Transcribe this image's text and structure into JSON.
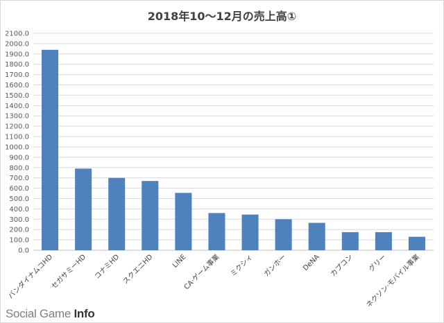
{
  "chart_data": {
    "type": "bar",
    "title": "2018年10〜12月の売上高①",
    "xlabel": "",
    "ylabel": "",
    "ylim": [
      0,
      2100
    ],
    "ytick_step": 100,
    "grid": true,
    "legend": "none",
    "categories": [
      "バンダイナムコHD",
      "セガサミーHD",
      "コナミHD",
      "スクエニHD",
      "LINE",
      "CA·ゲーム事業",
      "ミクシィ",
      "ガンホー",
      "DeNA",
      "カプコン",
      "グリー",
      "ネクソン·モバイル事業"
    ],
    "values": [
      1940,
      790,
      700,
      670,
      555,
      360,
      345,
      300,
      265,
      175,
      175,
      130
    ],
    "bar_color": "#4f81bd"
  },
  "watermark": {
    "prefix": "Social Game ",
    "suffix": "Info"
  }
}
